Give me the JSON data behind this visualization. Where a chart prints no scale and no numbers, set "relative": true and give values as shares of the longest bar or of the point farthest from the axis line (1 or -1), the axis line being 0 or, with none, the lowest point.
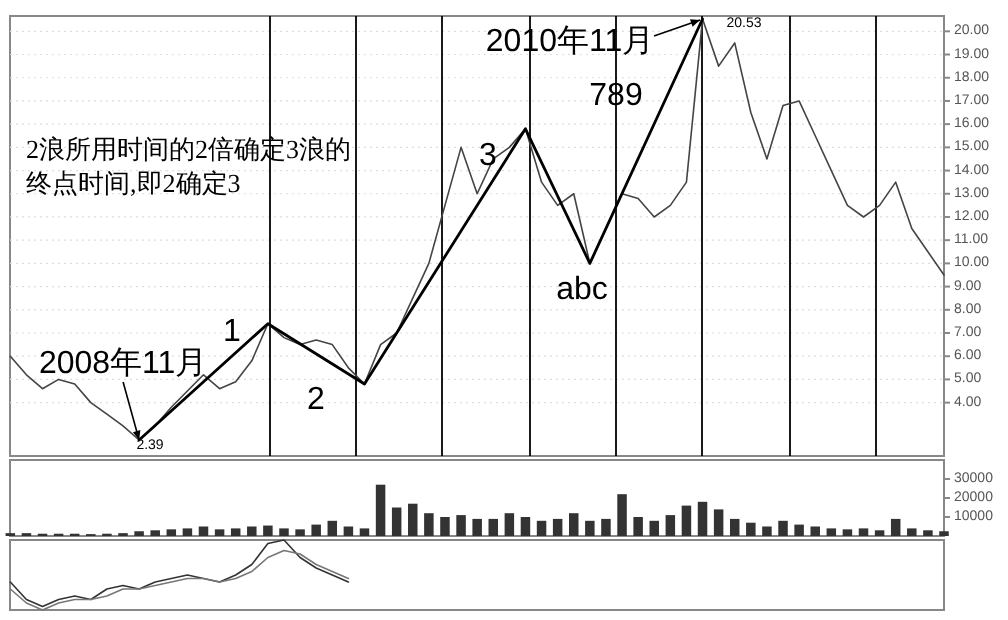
{
  "chart_data": [
    {
      "type": "line",
      "ylim": [
        1.7,
        20.66
      ],
      "tick_labels": "y",
      "categories": [
        null,
        null,
        null,
        null,
        null,
        null,
        null,
        null,
        null,
        null,
        null,
        null,
        null,
        null,
        null,
        null,
        null,
        null,
        null,
        null,
        null,
        null,
        null,
        null,
        null,
        null,
        null,
        null,
        null,
        null,
        null,
        null,
        null,
        null,
        null,
        null,
        null,
        null,
        null,
        null,
        null,
        null,
        null,
        null,
        null,
        null,
        null,
        null,
        null,
        null,
        null,
        null,
        null,
        null,
        null,
        null,
        null,
        null,
        null
      ],
      "yticks": [
        {
          "value": 4,
          "label": "4.00"
        },
        {
          "value": 5,
          "label": "5.00"
        },
        {
          "value": 6,
          "label": "6.00"
        },
        {
          "value": 7,
          "label": "7.00"
        },
        {
          "value": 8,
          "label": "8.00"
        },
        {
          "value": 9,
          "label": "9.00"
        },
        {
          "value": 10,
          "label": "10.00"
        },
        {
          "value": 11,
          "label": "11.00"
        },
        {
          "value": 12,
          "label": "12.00"
        },
        {
          "value": 13,
          "label": "13.00"
        },
        {
          "value": 14,
          "label": "14.00"
        },
        {
          "value": 15,
          "label": "15.00"
        },
        {
          "value": 16,
          "label": "16.00"
        },
        {
          "value": 17,
          "label": "17.00"
        },
        {
          "value": 18,
          "label": "18.00"
        },
        {
          "value": 19,
          "label": "19.00"
        },
        {
          "value": 20,
          "label": "20.00"
        }
      ],
      "series": [
        {
          "color": "#444444",
          "values": [
            6.0,
            5.2,
            4.6,
            5.0,
            4.8,
            4.0,
            3.5,
            3.0,
            2.39,
            3.0,
            3.8,
            4.5,
            5.2,
            4.6,
            4.9,
            5.8,
            7.4,
            6.8,
            6.5,
            6.7,
            6.5,
            5.5,
            4.8,
            6.5,
            7.0,
            8.5,
            10.0,
            12.5,
            15.0,
            13.0,
            14.5,
            15.0,
            15.8,
            13.5,
            12.5,
            13.0,
            10.0,
            11.5,
            13.0,
            12.8,
            12.0,
            12.5,
            13.5,
            20.53,
            18.5,
            19.5,
            16.5,
            14.5,
            16.8,
            17.0,
            15.5,
            14.0,
            12.5,
            12.0,
            12.5,
            13.5,
            11.5,
            10.5,
            9.5
          ]
        },
        {
          "color": "#000000",
          "values": [
            null,
            null,
            null,
            null,
            null,
            null,
            null,
            null,
            2.39,
            null,
            null,
            null,
            null,
            null,
            null,
            null,
            7.4,
            null,
            null,
            null,
            null,
            null,
            4.8,
            null,
            null,
            null,
            null,
            null,
            null,
            null,
            null,
            null,
            15.8,
            null,
            null,
            null,
            10.0,
            null,
            null,
            null,
            null,
            null,
            null,
            20.53,
            null,
            null,
            null,
            null,
            null,
            null,
            null,
            null,
            null,
            null,
            null,
            null,
            null,
            null,
            null
          ]
        }
      ],
      "grid": true,
      "annotations": [
        "2浪所用时间的2倍确定3浪的终点时间,即2确定3",
        {
          "text": "2008年11月",
          "y": 2.39
        },
        "2010年11月",
        "2.39",
        "20.53",
        "1",
        "2",
        "3",
        "abc",
        "789"
      ]
    },
    {
      "type": "bar",
      "categories": [
        null,
        null,
        null,
        null,
        null,
        null,
        null,
        null,
        null,
        null,
        null,
        null,
        null,
        null,
        null,
        null,
        null,
        null,
        null,
        null,
        null,
        null,
        null,
        null,
        null,
        null,
        null,
        null,
        null,
        null,
        null,
        null,
        null,
        null,
        null,
        null,
        null,
        null,
        null,
        null,
        null,
        null,
        null,
        null,
        null,
        null,
        null,
        null,
        null,
        null,
        null,
        null,
        null,
        null,
        null,
        null,
        null,
        null,
        null
      ],
      "ylim": [
        0,
        40000
      ],
      "yticks": [
        10000,
        20000,
        30000
      ],
      "tick_labels": "y",
      "color": "#333333",
      "values": [
        1500,
        1500,
        1200,
        1200,
        1200,
        1000,
        1200,
        1500,
        2500,
        3000,
        3500,
        4000,
        5000,
        3500,
        4000,
        5000,
        5500,
        4000,
        3500,
        6000,
        8000,
        5000,
        4000,
        27000,
        15000,
        17000,
        12000,
        10000,
        11000,
        9000,
        9000,
        12000,
        10000,
        8000,
        9000,
        12000,
        8000,
        9000,
        22000,
        10000,
        8000,
        11000,
        16000,
        18000,
        14000,
        9000,
        7000,
        5000,
        8000,
        6000,
        5000,
        4000,
        3500,
        4000,
        3000,
        9000,
        4000,
        3000,
        2500
      ]
    },
    {
      "type": "line",
      "relative": true,
      "categories": [
        null,
        null,
        null,
        null,
        null,
        null,
        null,
        null,
        null,
        null,
        null,
        null,
        null,
        null,
        null,
        null,
        null,
        null,
        null,
        null,
        null,
        null,
        null,
        null,
        null,
        null,
        null,
        null,
        null,
        null,
        null,
        null,
        null,
        null,
        null,
        null,
        null,
        null,
        null,
        null,
        null,
        null,
        null,
        null,
        null,
        null,
        null,
        null,
        null,
        null,
        null,
        null,
        null,
        null,
        null,
        null,
        null,
        null,
        null
      ],
      "series": [
        {
          "color": "#333333",
          "values": [
            0.4,
            0.15,
            0.05,
            0.15,
            0.2,
            0.15,
            0.3,
            0.35,
            0.3,
            0.4,
            0.45,
            0.5,
            0.45,
            0.4,
            0.5,
            0.65,
            0.95,
            1,
            0.75,
            0.6,
            0.5,
            0.4,
            null,
            null,
            null,
            null,
            null,
            null,
            null,
            null,
            null,
            null,
            null,
            null,
            null,
            null,
            null,
            null,
            null,
            null,
            null,
            null,
            null,
            null,
            null,
            null,
            null,
            null,
            null,
            null,
            null,
            null,
            null,
            null,
            null,
            null,
            null,
            null,
            null
          ]
        },
        {
          "color": "#777777",
          "values": [
            0.3,
            0.1,
            0,
            0.1,
            0.15,
            0.15,
            0.2,
            0.3,
            0.3,
            0.35,
            0.4,
            0.45,
            0.45,
            0.4,
            0.45,
            0.55,
            0.75,
            0.85,
            0.8,
            0.65,
            0.55,
            0.45,
            null,
            null,
            null,
            null,
            null,
            null,
            null,
            null,
            null,
            null,
            null,
            null,
            null,
            null,
            null,
            null,
            null,
            null,
            null,
            null,
            null,
            null,
            null,
            null,
            null,
            null,
            null,
            null,
            null,
            null,
            null,
            null,
            null,
            null,
            null,
            null,
            null
          ]
        }
      ]
    }
  ]
}
